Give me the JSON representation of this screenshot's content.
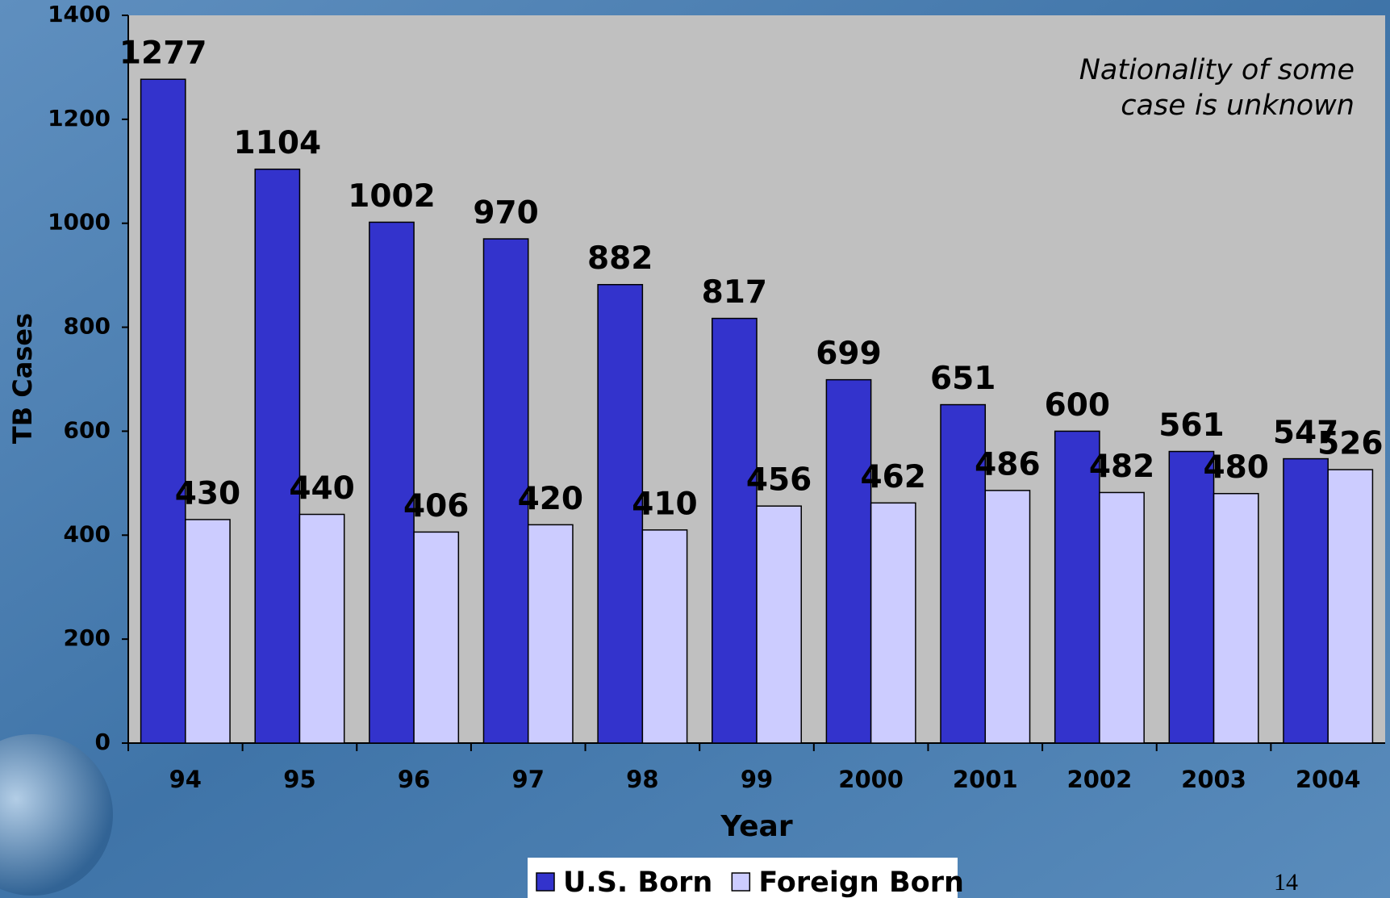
{
  "chart_data": {
    "type": "bar",
    "categories": [
      "94",
      "95",
      "96",
      "97",
      "98",
      "99",
      "2000",
      "2001",
      "2002",
      "2003",
      "2004"
    ],
    "series": [
      {
        "name": "U.S. Born",
        "color": "#3333cc",
        "values": [
          1277,
          1104,
          1002,
          970,
          882,
          817,
          699,
          651,
          600,
          561,
          547
        ]
      },
      {
        "name": "Foreign Born",
        "color": "#ccccff",
        "values": [
          430,
          440,
          406,
          420,
          410,
          456,
          462,
          486,
          482,
          480,
          526
        ]
      }
    ],
    "ylim": [
      0,
      1400
    ],
    "yticks": [
      0,
      200,
      400,
      600,
      800,
      1000,
      1200,
      1400
    ],
    "ylabel": "TB Cases",
    "xlabel": "Year",
    "annotation": [
      "Nationality of some",
      "case is unknown"
    ],
    "legend": "bottom"
  },
  "page_number": "14"
}
